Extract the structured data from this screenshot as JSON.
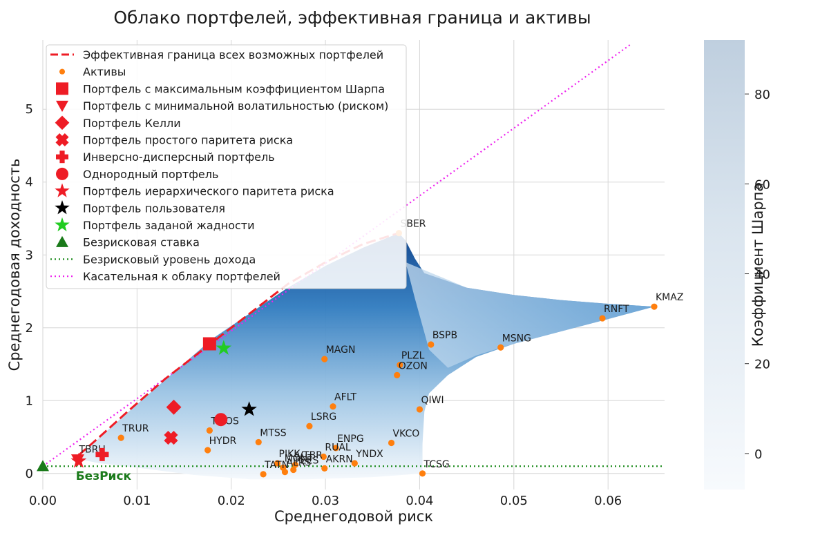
{
  "chart_data": {
    "type": "scatter",
    "title": "Облако портфелей, эффективная граница и активы",
    "xlabel": "Среднегодовой риск",
    "ylabel": "Среднегодовая доходность",
    "xlim": [
      0.0,
      0.066
    ],
    "ylim": [
      -0.22,
      5.95
    ],
    "x_ticks": [
      "0.00",
      "0.01",
      "0.02",
      "0.03",
      "0.04",
      "0.05",
      "0.06"
    ],
    "x_tick_values": [
      0.0,
      0.01,
      0.02,
      0.03,
      0.04,
      0.05,
      0.06
    ],
    "y_ticks": [
      "0",
      "1",
      "2",
      "3",
      "4",
      "5"
    ],
    "y_tick_values": [
      0,
      1,
      2,
      3,
      4,
      5
    ],
    "grid": true,
    "colorbar": {
      "label": "Коэффициент Шарпа",
      "range": [
        -8,
        92
      ],
      "ticks": [
        "0",
        "20",
        "40",
        "60",
        "80"
      ],
      "tick_values": [
        0,
        20,
        40,
        60,
        80
      ]
    },
    "legend": {
      "placement": "upper-left",
      "entries": [
        {
          "label": "Эффективная граница всех возможных портфелей",
          "marker": "dashed-line",
          "color": "#ee1c25"
        },
        {
          "label": "Активы",
          "marker": "dot",
          "color": "#ff7f0e"
        },
        {
          "label": "Портфель с максимальным коэффициентом Шарпа",
          "marker": "square",
          "color": "#ee1c25"
        },
        {
          "label": "Портфель с минимальной волатильностью (риском)",
          "marker": "triangle-down",
          "color": "#ee1c25"
        },
        {
          "label": "Портфель Келли",
          "marker": "diamond",
          "color": "#ee1c25"
        },
        {
          "label": "Портфель простого паритета риска",
          "marker": "x",
          "color": "#ee1c25"
        },
        {
          "label": "Инверсно-дисперсный портфель",
          "marker": "plus",
          "color": "#ee1c25"
        },
        {
          "label": "Однородный портфель",
          "marker": "circle",
          "color": "#ee1c25"
        },
        {
          "label": "Портфель иерархического паритета риска",
          "marker": "star",
          "color": "#ee1c25"
        },
        {
          "label": "Портфель пользователя",
          "marker": "star",
          "color": "#000000"
        },
        {
          "label": "Портфель заданой жадности",
          "marker": "star",
          "color": "#22cc22"
        },
        {
          "label": "Безрисковая ставка",
          "marker": "triangle-up",
          "color": "#1a7a1a"
        },
        {
          "label": "Безрисковый уровень дохода",
          "marker": "dotted-line",
          "color": "#1a8a1a"
        },
        {
          "label": "Касательная к облаку портфелей",
          "marker": "dotted-line",
          "color": "#ee22ee"
        }
      ]
    },
    "risk_free_rate": 0.1,
    "risk_free_label": "БезРиск",
    "tangent_line": {
      "x": [
        0.0,
        0.0625
      ],
      "y": [
        0.1,
        5.9
      ]
    },
    "efficient_frontier": {
      "x": [
        0.0038,
        0.006,
        0.009,
        0.013,
        0.018,
        0.022,
        0.026,
        0.03,
        0.034,
        0.0378
      ],
      "y": [
        0.25,
        0.5,
        0.85,
        1.3,
        1.8,
        2.2,
        2.6,
        2.9,
        3.15,
        3.3
      ]
    },
    "assets": [
      {
        "name": "SBER",
        "x": 0.0378,
        "y": 3.3
      },
      {
        "name": "KMAZ",
        "x": 0.0649,
        "y": 2.29
      },
      {
        "name": "RNFT",
        "x": 0.0594,
        "y": 2.13
      },
      {
        "name": "BSPB",
        "x": 0.0412,
        "y": 1.77
      },
      {
        "name": "MSNG",
        "x": 0.0486,
        "y": 1.73
      },
      {
        "name": "MAGN",
        "x": 0.0299,
        "y": 1.57
      },
      {
        "name": "PLZL",
        "x": 0.0379,
        "y": 1.49
      },
      {
        "name": "OZON",
        "x": 0.0376,
        "y": 1.35
      },
      {
        "name": "AFLT",
        "x": 0.0308,
        "y": 0.92
      },
      {
        "name": "QIWI",
        "x": 0.04,
        "y": 0.88
      },
      {
        "name": "LSRG",
        "x": 0.0283,
        "y": 0.65
      },
      {
        "name": "TRUR",
        "x": 0.0083,
        "y": 0.49
      },
      {
        "name": "TMOS",
        "x": 0.0177,
        "y": 0.59
      },
      {
        "name": "MTSS",
        "x": 0.0229,
        "y": 0.43
      },
      {
        "name": "HYDR",
        "x": 0.0175,
        "y": 0.32
      },
      {
        "name": "ENPG",
        "x": 0.0311,
        "y": 0.35
      },
      {
        "name": "VKCO",
        "x": 0.037,
        "y": 0.42
      },
      {
        "name": "RUAL",
        "x": 0.0298,
        "y": 0.23
      },
      {
        "name": "YNDX",
        "x": 0.0331,
        "y": 0.14
      },
      {
        "name": "PIKK",
        "x": 0.0249,
        "y": 0.14
      },
      {
        "name": "VTBR",
        "x": 0.0268,
        "y": 0.12
      },
      {
        "name": "MGNT",
        "x": 0.0255,
        "y": 0.08
      },
      {
        "name": "FEES",
        "x": 0.0266,
        "y": 0.05
      },
      {
        "name": "AKRN",
        "x": 0.0299,
        "y": 0.07
      },
      {
        "name": "ALRS",
        "x": 0.0257,
        "y": 0.02
      },
      {
        "name": "TCSG",
        "x": 0.0403,
        "y": 0.0
      },
      {
        "name": "TATN",
        "x": 0.0234,
        "y": -0.01
      },
      {
        "name": "TBRU",
        "x": 0.0037,
        "y": 0.2
      }
    ],
    "portfolios": [
      {
        "name": "Портфель с максимальным коэффициентом Шарпа",
        "x": 0.0177,
        "y": 1.78
      },
      {
        "name": "Портфель с минимальной волатильностью (риском)",
        "x": 0.0037,
        "y": 0.19
      },
      {
        "name": "Портфель Келли",
        "x": 0.0139,
        "y": 0.91
      },
      {
        "name": "Портфель простого паритета риска",
        "x": 0.0136,
        "y": 0.49
      },
      {
        "name": "Инверсно-дисперсный портфель",
        "x": 0.0063,
        "y": 0.26
      },
      {
        "name": "Однородный портфель",
        "x": 0.0189,
        "y": 0.74
      },
      {
        "name": "Портфель иерархического паритета риска",
        "x": 0.0038,
        "y": 0.17
      },
      {
        "name": "Портфель пользователя",
        "x": 0.0219,
        "y": 0.88
      },
      {
        "name": "Портфель заданой жадности",
        "x": 0.0192,
        "y": 1.72
      }
    ]
  }
}
